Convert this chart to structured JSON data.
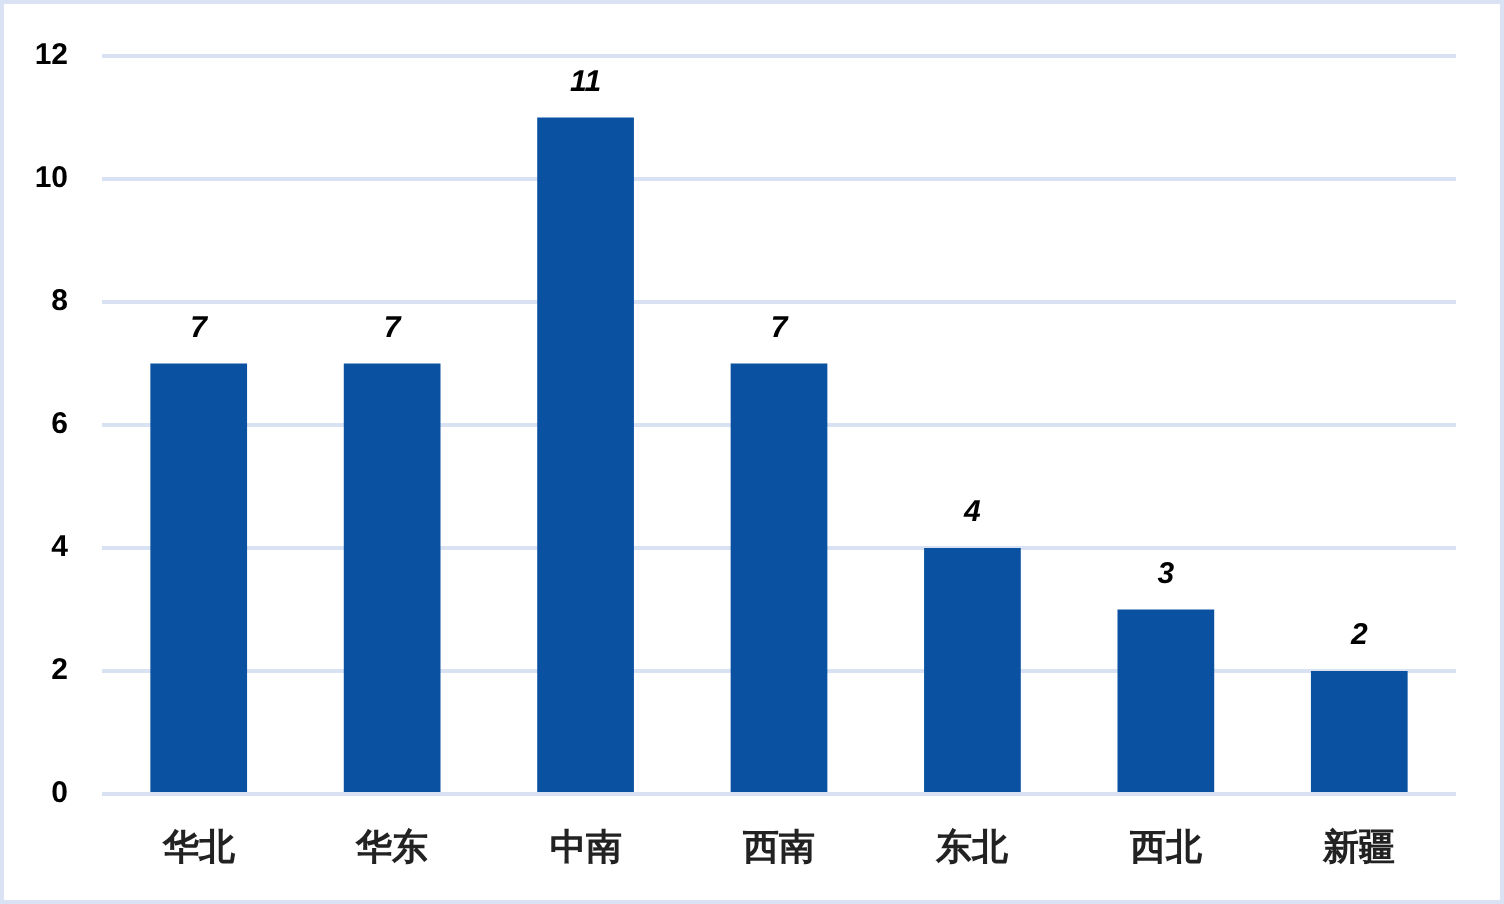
{
  "chart_data": {
    "type": "bar",
    "categories": [
      "华北",
      "华东",
      "中南",
      "西南",
      "东北",
      "西北",
      "新疆"
    ],
    "values": [
      7,
      7,
      11,
      7,
      4,
      3,
      2
    ],
    "color": "#0b51a2",
    "ylim": [
      0,
      12
    ],
    "yticks": [
      0,
      2,
      4,
      6,
      8,
      10,
      12
    ],
    "grid": "y",
    "data_labels": true
  }
}
